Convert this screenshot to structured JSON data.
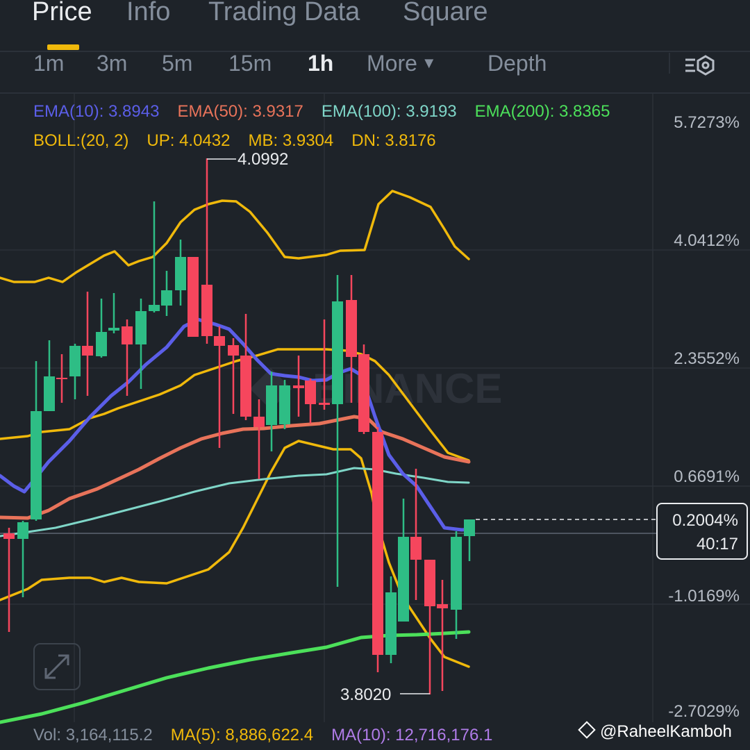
{
  "tabs": [
    {
      "label": "Price",
      "active": true
    },
    {
      "label": "Info",
      "active": false
    },
    {
      "label": "Trading Data",
      "active": false
    },
    {
      "label": "Square",
      "active": false
    }
  ],
  "intervals": {
    "items": [
      "1m",
      "3m",
      "5m",
      "15m",
      "1h"
    ],
    "active": "1h",
    "more_label": "More",
    "depth_label": "Depth"
  },
  "ema": {
    "ema10": "EMA(10): 3.8943",
    "ema50": "EMA(50): 3.9317",
    "ema100": "EMA(100): 3.9193",
    "ema200": "EMA(200): 3.8365"
  },
  "boll": {
    "params": "BOLL:(20, 2)",
    "up": "UP: 4.0432",
    "mb": "MB: 3.9304",
    "dn": "DN: 3.8176"
  },
  "axis_labels": [
    "5.7273%",
    "4.0412%",
    "2.3552%",
    "0.6691%",
    "-1.0169%",
    "-2.7029%"
  ],
  "annotations": {
    "high": "4.0992",
    "low": "3.8020"
  },
  "current": {
    "pct": "0.2004%",
    "countdown": "40:17"
  },
  "volume": {
    "vol": "Vol: 3,164,115.2",
    "ma5": "MA(5): 8,886,622.4",
    "ma10": "MA(10): 12,716,176.1"
  },
  "watermark": {
    "logo_text": "BINANCE",
    "user": "@RaheelKamboh"
  },
  "colors": {
    "up": "#2ebd85",
    "down": "#f6465d",
    "ema10": "#5b5ee8",
    "ema50": "#e8735a",
    "ema100": "#7fd6c8",
    "ema200": "#4ce05a",
    "boll": "#f0b90b",
    "accent": "#f0b90b",
    "ma10_text": "#b07ce8"
  },
  "icons": [
    "more-caret-icon",
    "chart-layout-icon",
    "expand-icon",
    "binance-diamond-icon"
  ]
}
